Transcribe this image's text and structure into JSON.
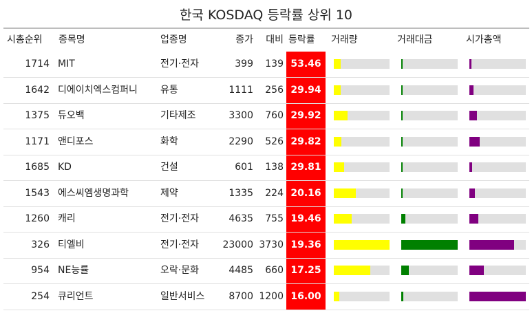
{
  "title": "한국 KOSDAQ 등락률 상위 10",
  "columns": {
    "rank": "시총순위",
    "name": "종목명",
    "sector": "업종명",
    "close": "종가",
    "change": "대비",
    "pct": "등락률",
    "volume": "거래량",
    "value": "거래대금",
    "mcap": "시가총액"
  },
  "colors": {
    "pct_cell": "#ff0000",
    "volume_bar": "#ffff00",
    "value_bar": "#008000",
    "mcap_bar": "#800080",
    "track": "#e0e0e0"
  },
  "chart_data": {
    "type": "table",
    "title": "한국 KOSDAQ 등락률 상위 10",
    "rows": [
      {
        "rank": "1714",
        "name": "MIT",
        "sector": "전기·전자",
        "close": "399",
        "change": "139",
        "pct": "53.46",
        "volume": 0.12,
        "value": 0.02,
        "mcap": 0.04
      },
      {
        "rank": "1642",
        "name": "디에이치엑스컴퍼니",
        "sector": "유통",
        "close": "1111",
        "change": "256",
        "pct": "29.94",
        "volume": 0.12,
        "value": 0.02,
        "mcap": 0.07
      },
      {
        "rank": "1375",
        "name": "듀오백",
        "sector": "기타제조",
        "close": "3300",
        "change": "760",
        "pct": "29.92",
        "volume": 0.25,
        "value": 0.03,
        "mcap": 0.13
      },
      {
        "rank": "1171",
        "name": "앤디포스",
        "sector": "화학",
        "close": "2290",
        "change": "526",
        "pct": "29.82",
        "volume": 0.14,
        "value": 0.02,
        "mcap": 0.18
      },
      {
        "rank": "1685",
        "name": "KD",
        "sector": "건설",
        "close": "601",
        "change": "138",
        "pct": "29.81",
        "volume": 0.18,
        "value": 0.01,
        "mcap": 0.05
      },
      {
        "rank": "1543",
        "name": "에스씨엠생명과학",
        "sector": "제약",
        "close": "1335",
        "change": "224",
        "pct": "20.16",
        "volume": 0.4,
        "value": 0.03,
        "mcap": 0.1
      },
      {
        "rank": "1260",
        "name": "캐리",
        "sector": "전기·전자",
        "close": "4635",
        "change": "755",
        "pct": "19.46",
        "volume": 0.32,
        "value": 0.07,
        "mcap": 0.16
      },
      {
        "rank": "326",
        "name": "티엘비",
        "sector": "전기·전자",
        "close": "23000",
        "change": "3730",
        "pct": "19.36",
        "volume": 1.0,
        "value": 1.0,
        "mcap": 0.79
      },
      {
        "rank": "954",
        "name": "NE능률",
        "sector": "오락·문화",
        "close": "4485",
        "change": "660",
        "pct": "17.25",
        "volume": 0.66,
        "value": 0.13,
        "mcap": 0.26
      },
      {
        "rank": "254",
        "name": "큐리언트",
        "sector": "일반서비스",
        "close": "8700",
        "change": "1200",
        "pct": "16.00",
        "volume": 0.1,
        "value": 0.04,
        "mcap": 1.0
      }
    ]
  }
}
